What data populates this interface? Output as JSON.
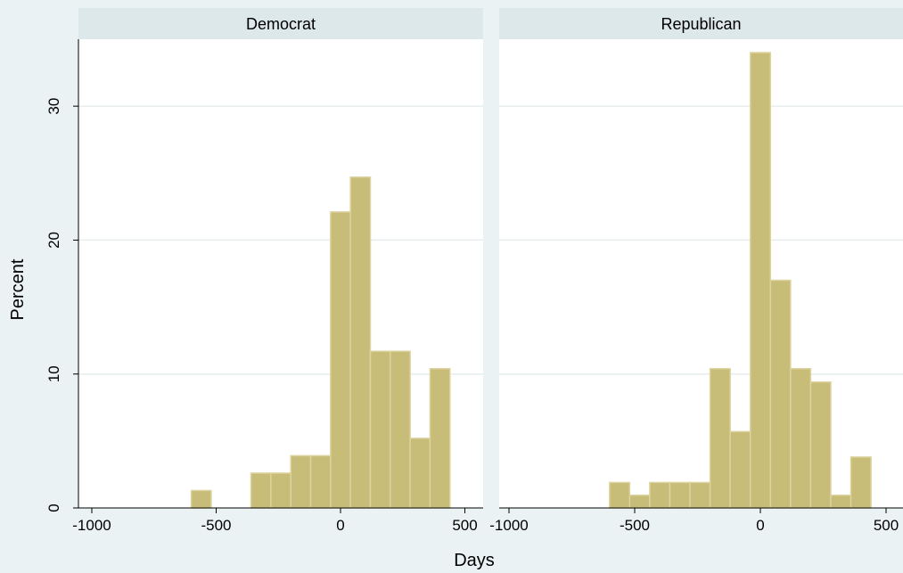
{
  "chart_data": {
    "type": "bar",
    "subtype": "histogram",
    "xlabel": "Days",
    "ylabel": "Percent",
    "xlim": [
      -1000,
      500
    ],
    "ylim": [
      0,
      35
    ],
    "x_ticks": [
      -1000,
      -500,
      0,
      500
    ],
    "y_ticks": [
      0,
      10,
      20,
      30
    ],
    "grid": "horizontal",
    "bin_width": 80,
    "colors": {
      "bar_fill": "#c8bc79",
      "bar_stroke": "#dcd39e",
      "grid": "#e7edee",
      "strip": "#dde8eb",
      "plot_bg": "#ffffff",
      "outer_bg": "#eaf2f3"
    },
    "panels": [
      {
        "title": "Democrat",
        "bins": [
          {
            "x0": -600,
            "value": 1.3
          },
          {
            "x0": -360,
            "value": 2.6
          },
          {
            "x0": -280,
            "value": 2.6
          },
          {
            "x0": -200,
            "value": 3.9
          },
          {
            "x0": -120,
            "value": 3.9
          },
          {
            "x0": -40,
            "value": 22.1
          },
          {
            "x0": 40,
            "value": 24.7
          },
          {
            "x0": 120,
            "value": 11.7
          },
          {
            "x0": 200,
            "value": 11.7
          },
          {
            "x0": 280,
            "value": 5.2
          },
          {
            "x0": 360,
            "value": 10.4
          }
        ]
      },
      {
        "title": "Republican",
        "bins": [
          {
            "x0": -600,
            "value": 1.9
          },
          {
            "x0": -520,
            "value": 0.95
          },
          {
            "x0": -440,
            "value": 1.9
          },
          {
            "x0": -360,
            "value": 1.9
          },
          {
            "x0": -280,
            "value": 1.9
          },
          {
            "x0": -200,
            "value": 10.4
          },
          {
            "x0": -120,
            "value": 5.7
          },
          {
            "x0": -40,
            "value": 34.0
          },
          {
            "x0": 40,
            "value": 17.0
          },
          {
            "x0": 120,
            "value": 10.4
          },
          {
            "x0": 200,
            "value": 9.4
          },
          {
            "x0": 280,
            "value": 0.95
          },
          {
            "x0": 360,
            "value": 3.8
          }
        ]
      }
    ]
  }
}
